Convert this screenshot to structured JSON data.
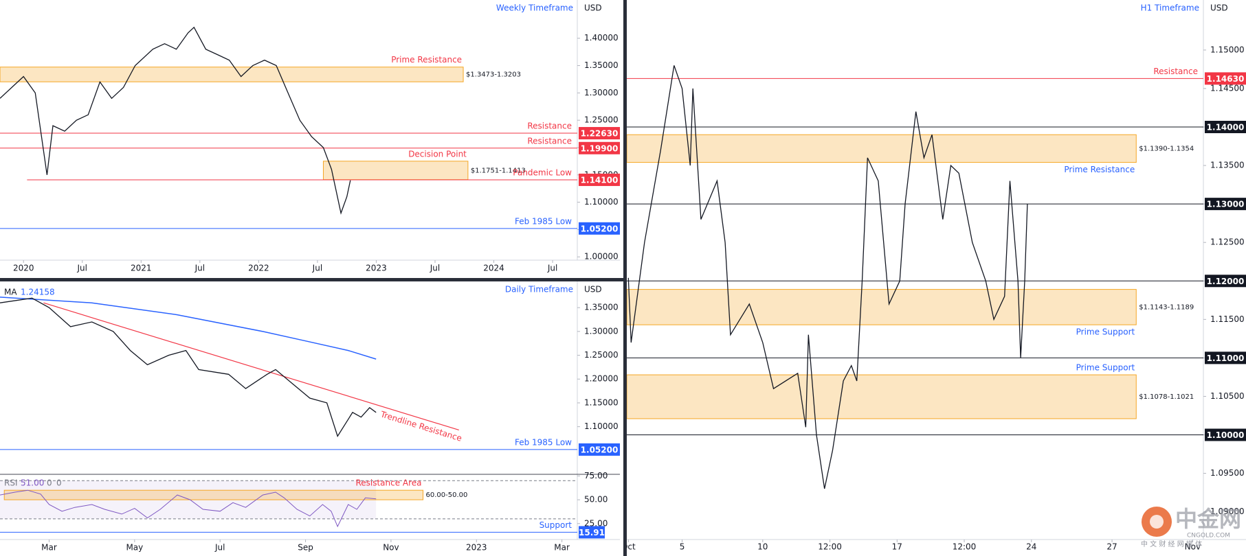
{
  "chart_data": [
    {
      "type": "line",
      "title": "Weekly Timeframe",
      "currency": "USD",
      "xlim": [
        2019.8,
        2024.71
      ],
      "xticks": [
        {
          "value": 2020,
          "label": "2020"
        },
        {
          "value": 2020.5,
          "label": "Jul"
        },
        {
          "value": 2021,
          "label": "2021"
        },
        {
          "value": 2021.5,
          "label": "Jul"
        },
        {
          "value": 2022,
          "label": "2022"
        },
        {
          "value": 2022.5,
          "label": "Jul"
        },
        {
          "value": 2023,
          "label": "2023"
        },
        {
          "value": 2023.5,
          "label": "Jul"
        },
        {
          "value": 2024,
          "label": "2024"
        },
        {
          "value": 2024.5,
          "label": "Jul"
        }
      ],
      "ylim": [
        0.994,
        1.47
      ],
      "yticks": [
        {
          "value": 1.0,
          "label": "1.00000"
        },
        {
          "value": 1.05,
          "label": "1.05000"
        },
        {
          "value": 1.1,
          "label": "1.10000"
        },
        {
          "value": 1.15,
          "label": "1.15000"
        },
        {
          "value": 1.2,
          "label": "1.20000"
        },
        {
          "value": 1.25,
          "label": "1.25000"
        },
        {
          "value": 1.3,
          "label": "1.30000"
        },
        {
          "value": 1.35,
          "label": "1.35000"
        },
        {
          "value": 1.4,
          "label": "1.40000"
        }
      ],
      "series": [
        {
          "color": "#131722",
          "x": [
            2019.8,
            2019.9,
            2020.0,
            2020.1,
            2020.2,
            2020.25,
            2020.35,
            2020.45,
            2020.55,
            2020.65,
            2020.75,
            2020.85,
            2020.95,
            2021.1,
            2021.2,
            2021.3,
            2021.4,
            2021.45,
            2021.55,
            2021.65,
            2021.75,
            2021.85,
            2021.95,
            2022.05,
            2022.15,
            2022.25,
            2022.35,
            2022.45,
            2022.55,
            2022.62,
            2022.7,
            2022.75,
            2022.78
          ],
          "values": [
            1.29,
            1.31,
            1.33,
            1.3,
            1.15,
            1.24,
            1.23,
            1.25,
            1.26,
            1.32,
            1.29,
            1.31,
            1.35,
            1.38,
            1.39,
            1.38,
            1.41,
            1.42,
            1.38,
            1.37,
            1.36,
            1.33,
            1.35,
            1.36,
            1.35,
            1.3,
            1.25,
            1.22,
            1.2,
            1.16,
            1.08,
            1.11,
            1.14
          ]
        }
      ],
      "zones": [
        {
          "label": "Prime Resistance",
          "label_pos": "above",
          "range": [
            1.3203,
            1.3473
          ],
          "range_label": "$1.3473-1.3203",
          "xrange": [
            2019.8,
            2023.74
          ],
          "color": "#f5a623"
        },
        {
          "label": "Decision Point",
          "label_pos": "above",
          "range": [
            1.1413,
            1.1751
          ],
          "range_label": "$1.1751-1.1413",
          "xrange": [
            2022.55,
            2023.78
          ],
          "color": "#f5a623"
        }
      ],
      "levels": [
        {
          "label": "Resistance",
          "value": 1.2263,
          "value_label": "1.22630",
          "color": "#f23645"
        },
        {
          "label": "Resistance",
          "value": 1.199,
          "value_label": "1.19900",
          "color": "#f23645"
        },
        {
          "label": "Pandemic Low",
          "value": 1.141,
          "value_label": "1.14100",
          "color": "#f23645",
          "xstart": 2020.03
        },
        {
          "label": "Feb 1985 Low",
          "value": 1.052,
          "value_label": "1.05200",
          "color": "#2962ff"
        }
      ]
    },
    {
      "type": "line",
      "title": "Daily Timeframe",
      "currency": "USD",
      "xlim": [
        0.85,
        14.36
      ],
      "xticks": [
        {
          "value": 2,
          "label": "Mar"
        },
        {
          "value": 4,
          "label": "May"
        },
        {
          "value": 6,
          "label": "Jul"
        },
        {
          "value": 8,
          "label": "Sep"
        },
        {
          "value": 10,
          "label": "Nov"
        },
        {
          "value": 12,
          "label": "2023"
        },
        {
          "value": 14,
          "label": "Mar"
        }
      ],
      "ylim": [
        1.0,
        1.405
      ],
      "yticks": [
        {
          "value": 1.1,
          "label": "1.10000"
        },
        {
          "value": 1.15,
          "label": "1.15000"
        },
        {
          "value": 1.2,
          "label": "1.20000"
        },
        {
          "value": 1.25,
          "label": "1.25000"
        },
        {
          "value": 1.3,
          "label": "1.30000"
        },
        {
          "value": 1.35,
          "label": "1.35000"
        }
      ],
      "series": [
        {
          "color": "#131722",
          "x": [
            0.85,
            1.6,
            2.0,
            2.5,
            3.0,
            3.5,
            3.9,
            4.3,
            4.8,
            5.2,
            5.5,
            6.2,
            6.6,
            7.1,
            7.3,
            7.7,
            8.1,
            8.5,
            8.75,
            9.1,
            9.3,
            9.5,
            9.65
          ],
          "values": [
            1.36,
            1.37,
            1.35,
            1.31,
            1.32,
            1.3,
            1.26,
            1.23,
            1.25,
            1.26,
            1.22,
            1.21,
            1.18,
            1.21,
            1.22,
            1.19,
            1.16,
            1.15,
            1.08,
            1.13,
            1.12,
            1.14,
            1.13
          ]
        }
      ],
      "ma": {
        "label": "MA",
        "value": 1.24158,
        "value_label": "1.24158",
        "color": "#2962ff",
        "x": [
          0.85,
          3,
          5,
          7,
          8,
          9,
          9.65
        ],
        "values": [
          1.372,
          1.36,
          1.335,
          1.3,
          1.28,
          1.26,
          1.242
        ]
      },
      "trendlines": [
        {
          "label": "Trendline Resistance",
          "color": "#f23645",
          "x": [
            1.87,
            11.59
          ],
          "values": [
            1.36,
            1.093
          ]
        }
      ],
      "levels": [
        {
          "label": "Feb 1985 Low",
          "value": 1.052,
          "value_label": "1.05200",
          "color": "#2962ff"
        }
      ],
      "rsi": {
        "label": "RSI",
        "value": 51.0,
        "value_label": "51.00",
        "params": [
          0,
          0
        ],
        "color": "#7e57c2",
        "ylim": [
          8.3,
          76.7
        ],
        "yticks": [
          {
            "value": 25,
            "label": "25.00"
          },
          {
            "value": 50,
            "label": "50.00"
          },
          {
            "value": 75,
            "label": "75.00"
          }
        ],
        "bands": [
          30,
          70
        ],
        "x": [
          0.85,
          1.2,
          1.5,
          1.8,
          2.0,
          2.3,
          2.6,
          3.0,
          3.3,
          3.7,
          4.0,
          4.3,
          4.6,
          5.0,
          5.3,
          5.6,
          6.0,
          6.3,
          6.6,
          7.0,
          7.3,
          7.5,
          7.8,
          8.1,
          8.4,
          8.6,
          8.75,
          9.0,
          9.2,
          9.4,
          9.65
        ],
        "values": [
          55,
          58,
          60,
          56,
          45,
          38,
          42,
          45,
          40,
          35,
          41,
          31,
          40,
          55,
          50,
          40,
          38,
          47,
          42,
          55,
          58,
          52,
          40,
          33,
          45,
          38,
          22,
          45,
          40,
          52,
          51
        ],
        "zones": [
          {
            "label": "Resistance Area",
            "label_pos": "above",
            "range": [
              50,
              60
            ],
            "range_label": "60.00-50.00",
            "xrange": [
              0.95,
              10.75
            ],
            "color": "#f5a623"
          }
        ],
        "levels": [
          {
            "label": "Support",
            "value": 15.91,
            "value_label": "15.91",
            "color": "#2962ff"
          }
        ]
      }
    },
    {
      "type": "line",
      "title": "H1 Timeframe",
      "currency": "USD",
      "xlim": [
        -0.06,
        21.4
      ],
      "xticks": [
        {
          "value": 0,
          "label": "Oct"
        },
        {
          "value": 2,
          "label": "5"
        },
        {
          "value": 5,
          "label": "10"
        },
        {
          "value": 7.5,
          "label": "12:00"
        },
        {
          "value": 10,
          "label": "17"
        },
        {
          "value": 12.5,
          "label": "12:00"
        },
        {
          "value": 15,
          "label": "24"
        },
        {
          "value": 18,
          "label": "27"
        },
        {
          "value": 21,
          "label": "Nov"
        }
      ],
      "ylim": [
        1.0864,
        1.1565
      ],
      "yticks": [
        {
          "value": 1.09,
          "label": "1.09000"
        },
        {
          "value": 1.095,
          "label": "1.09500"
        },
        {
          "value": 1.1,
          "label": "1.10000"
        },
        {
          "value": 1.105,
          "label": "1.10500"
        },
        {
          "value": 1.11,
          "label": "1.11000"
        },
        {
          "value": 1.115,
          "label": "1.11500"
        },
        {
          "value": 1.12,
          "label": "1.12000"
        },
        {
          "value": 1.125,
          "label": "1.12500"
        },
        {
          "value": 1.13,
          "label": "1.13000"
        },
        {
          "value": 1.135,
          "label": "1.13500"
        },
        {
          "value": 1.14,
          "label": "1.14000"
        },
        {
          "value": 1.145,
          "label": "1.14500"
        },
        {
          "value": 1.15,
          "label": "1.15000"
        }
      ],
      "series": [
        {
          "color": "#131722",
          "x": [
            0,
            0.1,
            0.6,
            1.2,
            1.7,
            2.0,
            2.3,
            2.4,
            2.7,
            3.3,
            3.6,
            3.8,
            4.5,
            5.0,
            5.4,
            6.3,
            6.6,
            6.7,
            7.0,
            7.3,
            7.6,
            8.0,
            8.3,
            8.5,
            8.7,
            8.9,
            9.3,
            9.7,
            10.1,
            10.3,
            10.7,
            11.0,
            11.3,
            11.7,
            12.0,
            12.3,
            12.8,
            13.3,
            13.6,
            14.0,
            14.2,
            14.5,
            14.6,
            14.75,
            14.85
          ],
          "values": [
            1.1204,
            1.112,
            1.125,
            1.137,
            1.148,
            1.145,
            1.135,
            1.145,
            1.128,
            1.133,
            1.125,
            1.113,
            1.117,
            1.112,
            1.106,
            1.108,
            1.101,
            1.113,
            1.1,
            1.093,
            1.098,
            1.107,
            1.109,
            1.107,
            1.12,
            1.136,
            1.133,
            1.117,
            1.12,
            1.13,
            1.142,
            1.136,
            1.139,
            1.128,
            1.135,
            1.134,
            1.125,
            1.12,
            1.115,
            1.118,
            1.133,
            1.12,
            1.11,
            1.12,
            1.13
          ]
        }
      ],
      "zones": [
        {
          "label": "Prime Resistance",
          "label_pos": "below",
          "range": [
            1.1354,
            1.139
          ],
          "range_label": "$1.1390-1.1354",
          "xrange": [
            -0.06,
            18.9
          ],
          "color": "#f5a623"
        },
        {
          "label": "Prime Support",
          "label_pos": "below",
          "range": [
            1.1143,
            1.1189
          ],
          "range_label": "$1.1143-1.1189",
          "xrange": [
            -0.06,
            18.9
          ],
          "color": "#f5a623"
        },
        {
          "label": "Prime Support",
          "label_pos": "above",
          "range": [
            1.1021,
            1.1078
          ],
          "range_label": "$1.1078-1.1021",
          "xrange": [
            -0.06,
            18.9
          ],
          "color": "#f5a623"
        }
      ],
      "zone_label_color": "#2962ff",
      "levels": [
        {
          "label": "Resistance",
          "value": 1.1463,
          "value_label": "1.14630",
          "color": "#f23645"
        },
        {
          "value": 1.14,
          "value_label": "1.14000",
          "color": "#131722"
        },
        {
          "value": 1.13,
          "value_label": "1.13000",
          "color": "#131722"
        },
        {
          "value": 1.12,
          "value_label": "1.12000",
          "color": "#131722"
        },
        {
          "value": 1.11,
          "value_label": "1.11000",
          "color": "#131722"
        },
        {
          "value": 1.1,
          "value_label": "1.10000",
          "color": "#131722"
        }
      ]
    }
  ],
  "watermark": {
    "title": "中金网",
    "url": "CNGOLD.COM",
    "tagline": "中 文 财 经 网 媒 体"
  }
}
